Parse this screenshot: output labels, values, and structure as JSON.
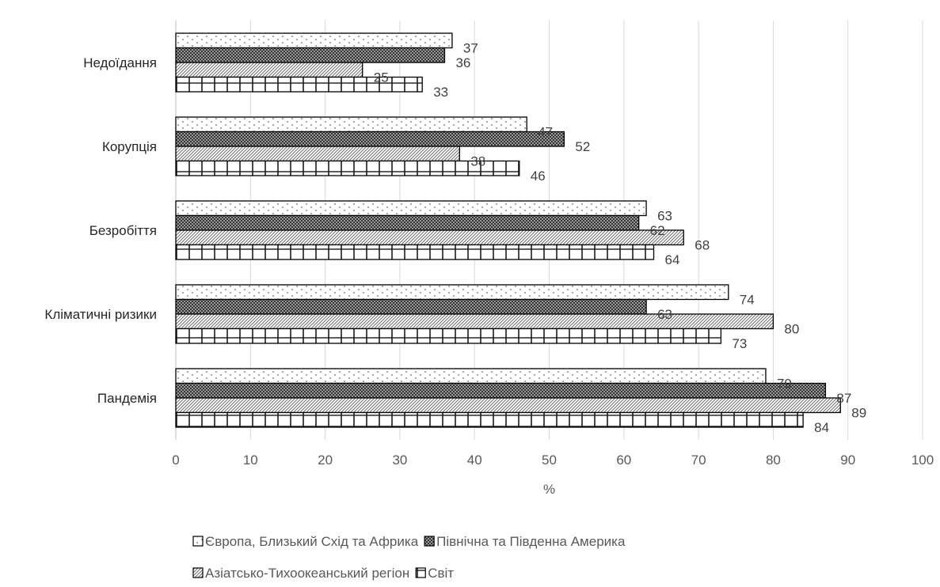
{
  "chart_data": {
    "type": "bar",
    "orientation": "horizontal",
    "categories": [
      "Пандемія",
      "Кліматичні ризики",
      "Безробіття",
      "Корупція",
      "Недоїдання"
    ],
    "series": [
      {
        "name": "Європа, Близький Схід та Африка",
        "values": [
          79,
          74,
          63,
          47,
          37
        ]
      },
      {
        "name": "Північна та Південна Америка",
        "values": [
          87,
          63,
          62,
          52,
          36
        ]
      },
      {
        "name": "Азіатсько-Тихоокеанський регіон",
        "values": [
          89,
          80,
          68,
          38,
          25
        ]
      },
      {
        "name": "Світ",
        "values": [
          84,
          73,
          64,
          46,
          33
        ]
      }
    ],
    "xlabel": "%",
    "ylabel": "",
    "xlim": [
      0,
      100
    ],
    "ticks": [
      "0",
      "10",
      "20",
      "30",
      "40",
      "50",
      "60",
      "70",
      "80",
      "90",
      "100"
    ],
    "grid": "vertical",
    "legend_position": "bottom"
  }
}
